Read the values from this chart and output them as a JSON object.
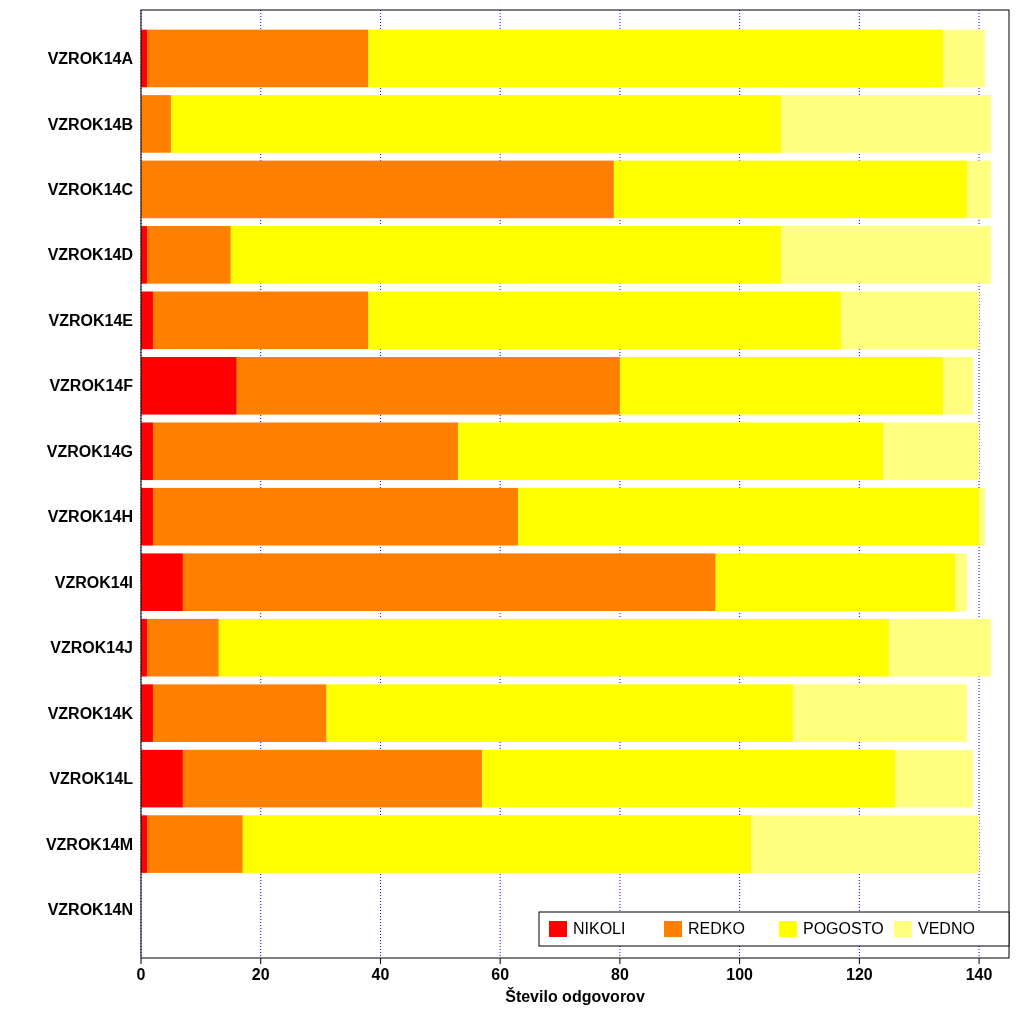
{
  "chart_data": {
    "type": "bar",
    "orientation": "horizontal",
    "stacked": true,
    "categories": [
      "VZROK14A",
      "VZROK14B",
      "VZROK14C",
      "VZROK14D",
      "VZROK14E",
      "VZROK14F",
      "VZROK14G",
      "VZROK14H",
      "VZROK14I",
      "VZROK14J",
      "VZROK14K",
      "VZROK14L",
      "VZROK14M",
      "VZROK14N"
    ],
    "series": [
      {
        "name": "NIKOLI",
        "color": "#ff0000",
        "values": [
          1,
          0,
          0,
          1,
          2,
          16,
          2,
          2,
          7,
          1,
          2,
          7,
          1,
          null
        ]
      },
      {
        "name": "REDKO",
        "color": "#ff8000",
        "values": [
          37,
          5,
          79,
          14,
          36,
          64,
          51,
          61,
          89,
          12,
          29,
          50,
          16,
          null
        ]
      },
      {
        "name": "POGOSTO",
        "color": "#ffff00",
        "values": [
          96,
          102,
          59,
          92,
          79,
          54,
          71,
          77,
          40,
          112,
          78,
          69,
          85,
          null
        ]
      },
      {
        "name": "VEDNO",
        "color": "#ffff80",
        "values": [
          7,
          35,
          4,
          35,
          23,
          5,
          16,
          1,
          2,
          17,
          29,
          13,
          38,
          null
        ]
      }
    ],
    "xlabel": "Število odgovorov",
    "xlim": [
      0,
      145
    ],
    "xticks": [
      0,
      20,
      40,
      60,
      80,
      100,
      120,
      140
    ],
    "grid": "x",
    "legend": "bottom right"
  }
}
